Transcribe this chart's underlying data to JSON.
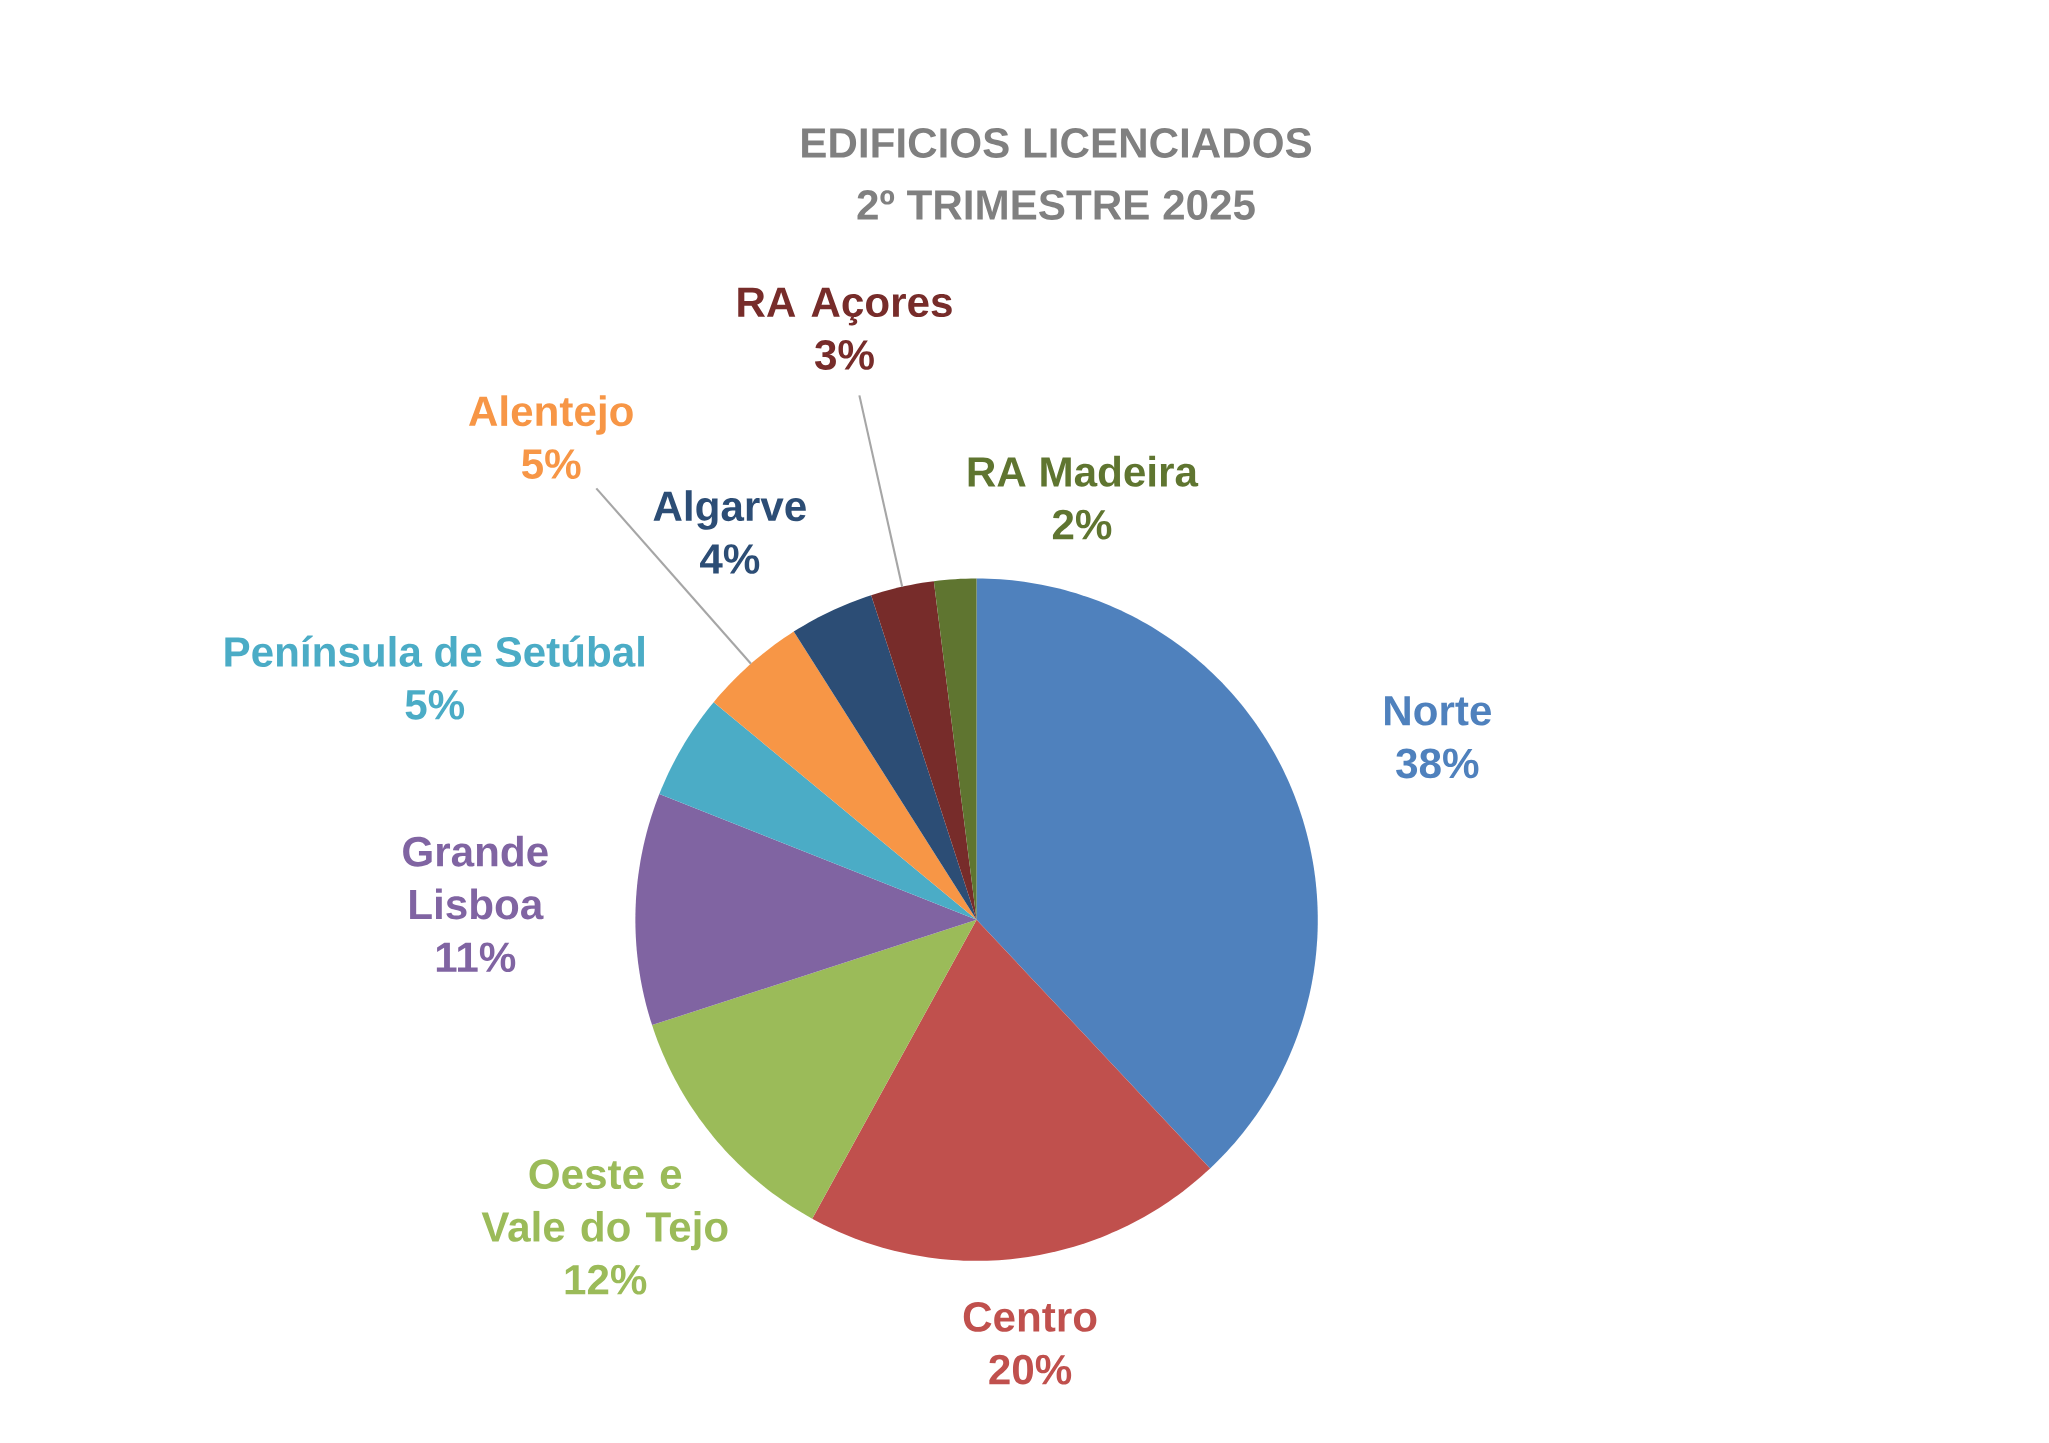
{
  "chart_data": {
    "type": "pie",
    "title": "EDIFICIOS LICENCIADOS",
    "subtitle": "2º TRIMESTRE 2025",
    "categories": [
      "Norte",
      "Centro",
      "Oeste e Vale do Tejo",
      "Grande Lisboa",
      "Península de Setúbal",
      "Alentejo",
      "Algarve",
      "RA Açores",
      "RA Madeira"
    ],
    "values": [
      38,
      20,
      12,
      11,
      5,
      5,
      4,
      3,
      2
    ],
    "value_labels": [
      "38%",
      "20%",
      "12%",
      "11%",
      "5%",
      "5%",
      "4%",
      "3%",
      "2%"
    ],
    "colors": [
      "#4f81bd",
      "#c0504d",
      "#9bbb59",
      "#8064a2",
      "#4bacc6",
      "#f79646",
      "#2c4d75",
      "#772c2a",
      "#5f7530"
    ]
  }
}
